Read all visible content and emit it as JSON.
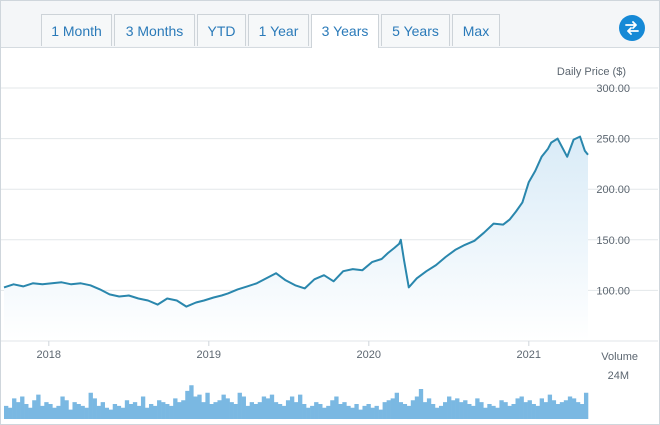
{
  "tabs": [
    {
      "label": "1 Month",
      "active": false
    },
    {
      "label": "3 Months",
      "active": false
    },
    {
      "label": "YTD",
      "active": false
    },
    {
      "label": "1 Year",
      "active": false
    },
    {
      "label": "3 Years",
      "active": true
    },
    {
      "label": "5 Years",
      "active": false
    },
    {
      "label": "Max",
      "active": false
    }
  ],
  "swap_button_icon": "swap-arrows-icon",
  "colors": {
    "line": "#2a87ad",
    "area_top": "#d9ebf7",
    "volume_bar": "#7ab8e2",
    "accent": "#1689d6",
    "tab_text": "#2a7ab9"
  },
  "chart_data": {
    "type": "line",
    "ylabel": "Daily Price ($)",
    "y_ticks": [
      "300.00",
      "250.00",
      "200.00",
      "150.00",
      "100.00"
    ],
    "ylim": [
      50,
      300
    ],
    "x_ticks": [
      "2018",
      "2019",
      "2020",
      "2021"
    ],
    "x_tick_positions": [
      2018.0,
      2019.0,
      2020.0,
      2021.0
    ],
    "xlim": [
      2017.72,
      2021.37
    ],
    "grid": true,
    "series": [
      {
        "x": [
          2017.72,
          2017.78,
          2017.84,
          2017.9,
          2017.96,
          2018.02,
          2018.08,
          2018.14,
          2018.2,
          2018.26,
          2018.32,
          2018.38,
          2018.44,
          2018.5,
          2018.56,
          2018.62,
          2018.68,
          2018.74,
          2018.8,
          2018.86,
          2018.92,
          2018.97,
          2019.03,
          2019.08,
          2019.12,
          2019.18,
          2019.24,
          2019.3,
          2019.36,
          2019.42,
          2019.48,
          2019.54,
          2019.6,
          2019.66,
          2019.72,
          2019.78,
          2019.84,
          2019.9,
          2019.96,
          2020.02,
          2020.08,
          2020.12,
          2020.16,
          2020.19,
          2020.2,
          2020.22,
          2020.25,
          2020.3,
          2020.36,
          2020.42,
          2020.48,
          2020.54,
          2020.6,
          2020.66,
          2020.72,
          2020.78,
          2020.84,
          2020.88,
          2020.92,
          2020.96,
          2021.0,
          2021.04,
          2021.08,
          2021.12,
          2021.14,
          2021.18,
          2021.2,
          2021.24,
          2021.28,
          2021.32,
          2021.35,
          2021.37
        ],
        "y": [
          103,
          106,
          104,
          107,
          106,
          107,
          108,
          106,
          107,
          105,
          101,
          96,
          94,
          95,
          92,
          90,
          86,
          92,
          90,
          84,
          88,
          90,
          93,
          95,
          97,
          101,
          104,
          107,
          112,
          117,
          110,
          105,
          102,
          111,
          115,
          109,
          119,
          121,
          120,
          128,
          131,
          137,
          142,
          146,
          150,
          130,
          103,
          112,
          119,
          125,
          133,
          140,
          145,
          149,
          157,
          166,
          165,
          170,
          178,
          187,
          207,
          218,
          232,
          240,
          246,
          250,
          244,
          232,
          249,
          252,
          238,
          234
        ]
      }
    ],
    "volume": {
      "label": "Volume",
      "max_label": "24M",
      "values": [
        7,
        6,
        11,
        9,
        12,
        8,
        6,
        10,
        13,
        7,
        9,
        8,
        6,
        7,
        12,
        10,
        5,
        9,
        8,
        7,
        6,
        14,
        11,
        7,
        9,
        6,
        5,
        8,
        7,
        6,
        10,
        8,
        9,
        7,
        12,
        6,
        8,
        7,
        10,
        9,
        8,
        7,
        11,
        9,
        10,
        15,
        18,
        12,
        13,
        9,
        14,
        8,
        9,
        10,
        13,
        11,
        9,
        8,
        14,
        12,
        7,
        9,
        8,
        9,
        12,
        11,
        13,
        9,
        8,
        7,
        10,
        12,
        9,
        13,
        8,
        6,
        7,
        9,
        8,
        6,
        7,
        10,
        12,
        8,
        9,
        7,
        6,
        8,
        5,
        7,
        8,
        6,
        7,
        5,
        9,
        10,
        11,
        14,
        9,
        8,
        7,
        10,
        12,
        16,
        9,
        11,
        8,
        6,
        7,
        9,
        12,
        10,
        11,
        9,
        10,
        8,
        7,
        11,
        9,
        6,
        8,
        7,
        6,
        10,
        9,
        7,
        8,
        11,
        12,
        9,
        10,
        8,
        7,
        11,
        9,
        13,
        10,
        8,
        9,
        10,
        12,
        11,
        9,
        8,
        14
      ]
    }
  }
}
